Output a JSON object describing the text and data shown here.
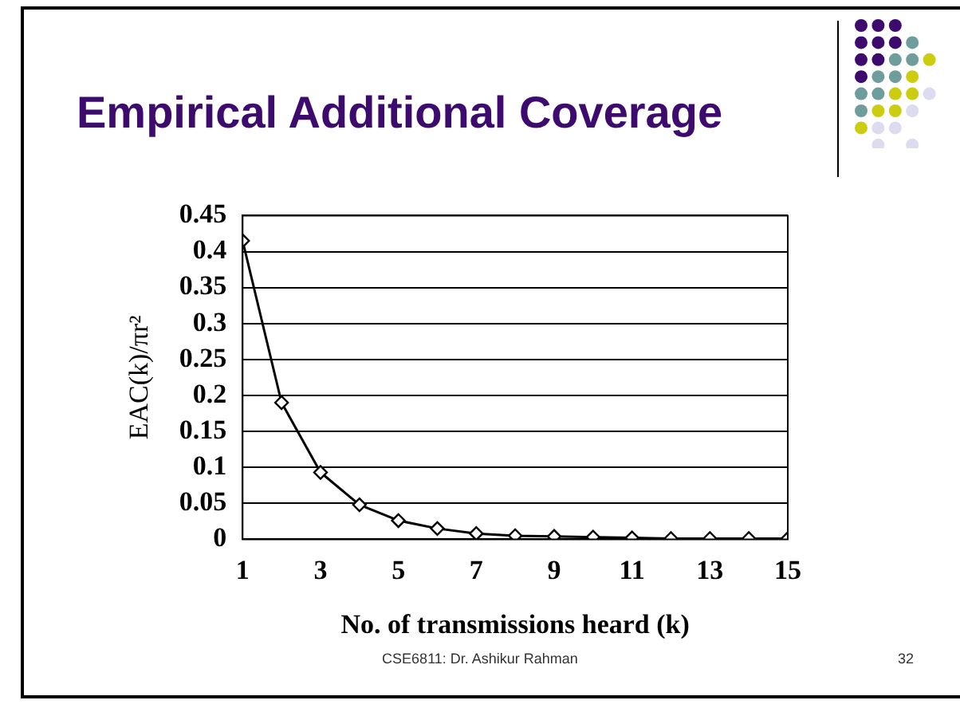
{
  "chart_data": {
    "type": "line",
    "title": "Empirical Additional Coverage",
    "xlabel": "No. of transmissions heard (k)",
    "ylabel": "EAC(k)/πr²",
    "x": [
      1,
      2,
      3,
      4,
      5,
      6,
      7,
      8,
      9,
      10,
      11,
      12,
      13,
      14,
      15
    ],
    "series": [
      {
        "color": "#000000",
        "values": [
          0.415,
          0.19,
          0.093,
          0.048,
          0.026,
          0.015,
          0.008,
          0.005,
          0.004,
          0.003,
          0.002,
          0.001,
          0.001,
          0.001,
          0.001
        ]
      }
    ],
    "xlim": [
      1,
      15
    ],
    "xticks": [
      1,
      3,
      5,
      7,
      9,
      11,
      13,
      15
    ],
    "ylim": [
      0,
      0.45
    ],
    "yticks": [
      0,
      0.05,
      0.1,
      0.15,
      0.2,
      0.25,
      0.3,
      0.35,
      0.4,
      0.45
    ],
    "grid": "y",
    "legend": false,
    "marker": "diamond",
    "line_style": "solid",
    "annotations": [
      "CSE6811: Dr. Ashikur Rahman",
      "32"
    ]
  }
}
